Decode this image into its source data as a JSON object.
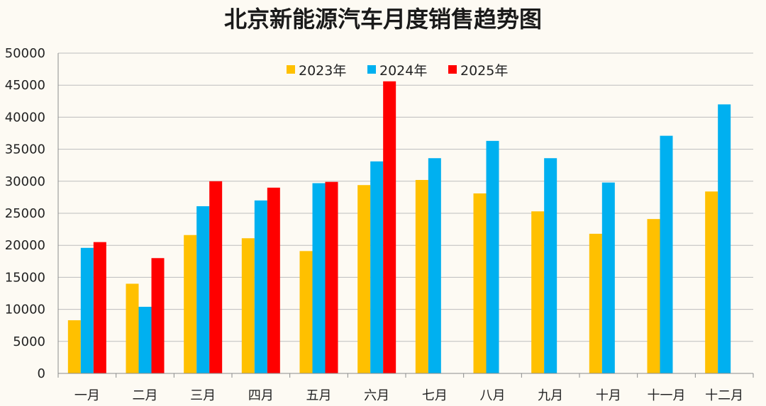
{
  "chart_data": {
    "type": "bar",
    "title": "北京新能源汽车月度销售趋势图",
    "categories": [
      "一月",
      "二月",
      "三月",
      "四月",
      "五月",
      "六月",
      "七月",
      "八月",
      "九月",
      "十月",
      "十一月",
      "十二月"
    ],
    "series": [
      {
        "name": "2023年",
        "color": "#ffc000",
        "values": [
          8300,
          14000,
          21600,
          21100,
          19100,
          29400,
          30200,
          28100,
          25300,
          21800,
          24100,
          28400
        ]
      },
      {
        "name": "2024年",
        "color": "#00b0f0",
        "values": [
          19600,
          10400,
          26100,
          27000,
          29700,
          33100,
          33600,
          36300,
          33600,
          29800,
          37100,
          42000
        ]
      },
      {
        "name": "2025年",
        "color": "#ff0000",
        "values": [
          20500,
          18000,
          30000,
          29000,
          29900,
          45600,
          null,
          null,
          null,
          null,
          null,
          null
        ]
      }
    ],
    "ylim": [
      0,
      50000
    ],
    "yticks": [
      0,
      5000,
      10000,
      15000,
      20000,
      25000,
      30000,
      35000,
      40000,
      45000,
      50000
    ],
    "grid": true,
    "legend": "top"
  }
}
